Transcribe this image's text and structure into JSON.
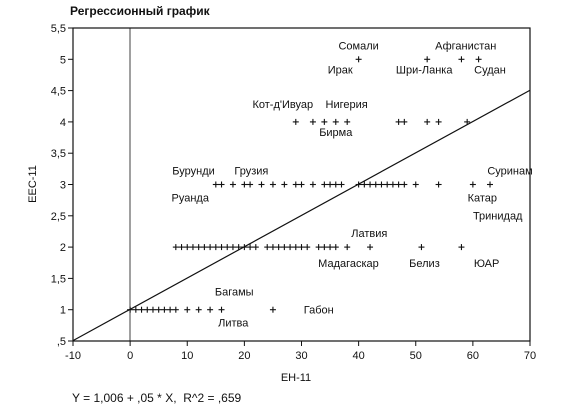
{
  "chart_data": {
    "type": "scatter",
    "title": "Регрессионный график",
    "xlabel": "EH-11",
    "ylabel": "EEC-11",
    "xlim": [
      -10,
      70
    ],
    "ylim": [
      0.5,
      5.5
    ],
    "x_ticks": [
      "-10",
      "0",
      "10",
      "20",
      "30",
      "40",
      "50",
      "60",
      "70"
    ],
    "y_ticks": [
      "5,5",
      "5",
      "4,5",
      "4",
      "3,5",
      "3",
      "2,5",
      "2",
      "1,5",
      "1",
      ",5"
    ],
    "grid": false,
    "legend": "none",
    "regression": {
      "intercept": 1.006,
      "slope": 0.05,
      "r2": 0.659
    },
    "equation": "Y = 1,006 + ,05 * X,  R^2 = ,659",
    "series": [
      {
        "x": [
          0,
          1,
          2,
          3,
          4,
          5,
          6,
          7,
          8,
          10,
          12,
          14,
          16,
          25,
          8,
          9,
          10,
          11,
          12,
          13,
          14,
          15,
          16,
          17,
          18,
          19,
          20,
          21,
          22,
          24,
          25,
          26,
          27,
          28,
          29,
          30,
          31,
          33,
          34,
          35,
          36,
          38,
          42,
          51,
          58,
          15,
          16,
          18,
          20,
          21,
          23,
          25,
          27,
          29,
          30,
          32,
          34,
          35,
          36,
          37,
          40,
          41,
          42,
          43,
          44,
          45,
          46,
          47,
          48,
          50,
          54,
          60,
          63,
          29,
          32,
          34,
          36,
          38,
          47,
          48,
          52,
          54,
          59,
          40,
          52,
          58,
          61
        ],
        "y": [
          1,
          1,
          1,
          1,
          1,
          1,
          1,
          1,
          1,
          1,
          1,
          1,
          1,
          1,
          2,
          2,
          2,
          2,
          2,
          2,
          2,
          2,
          2,
          2,
          2,
          2,
          2,
          2,
          2,
          2,
          2,
          2,
          2,
          2,
          2,
          2,
          2,
          2,
          2,
          2,
          2,
          2,
          2,
          2,
          2,
          3,
          3,
          3,
          3,
          3,
          3,
          3,
          3,
          3,
          3,
          3,
          3,
          3,
          3,
          3,
          3,
          3,
          3,
          3,
          3,
          3,
          3,
          3,
          3,
          3,
          3,
          3,
          3,
          4,
          4,
          4,
          4,
          4,
          4,
          4,
          4,
          4,
          4,
          5,
          5,
          5,
          5
        ]
      }
    ],
    "annotations": [
      {
        "text": "Сомали",
        "x": 40,
        "y": 5
      },
      {
        "text": "Афганистан",
        "x": 57,
        "y": 5
      },
      {
        "text": "Ирак",
        "x": 38,
        "y": 5
      },
      {
        "text": "Шри-Ланка",
        "x": 52,
        "y": 5
      },
      {
        "text": "Судан",
        "x": 63,
        "y": 5
      },
      {
        "text": "Кот-д'Ивуар",
        "x": 29,
        "y": 4
      },
      {
        "text": "Нигерия",
        "x": 40,
        "y": 4
      },
      {
        "text": "Бирма",
        "x": 36,
        "y": 4
      },
      {
        "text": "Бурунди",
        "x": 9,
        "y": 3
      },
      {
        "text": "Грузия",
        "x": 20,
        "y": 3
      },
      {
        "text": "Суринам",
        "x": 63,
        "y": 3
      },
      {
        "text": "Руанда",
        "x": 10,
        "y": 3
      },
      {
        "text": "Катар",
        "x": 62,
        "y": 3
      },
      {
        "text": "Тринидад",
        "x": 64,
        "y": 3
      },
      {
        "text": "Латвия",
        "x": 41,
        "y": 2
      },
      {
        "text": "Мадагаскар",
        "x": 37,
        "y": 2
      },
      {
        "text": "Белиз",
        "x": 51,
        "y": 2
      },
      {
        "text": "ЮАР",
        "x": 61,
        "y": 2
      },
      {
        "text": "Багамы",
        "x": 17,
        "y": 1
      },
      {
        "text": "Литва",
        "x": 17,
        "y": 1
      },
      {
        "text": "Габон",
        "x": 29,
        "y": 1
      }
    ]
  }
}
